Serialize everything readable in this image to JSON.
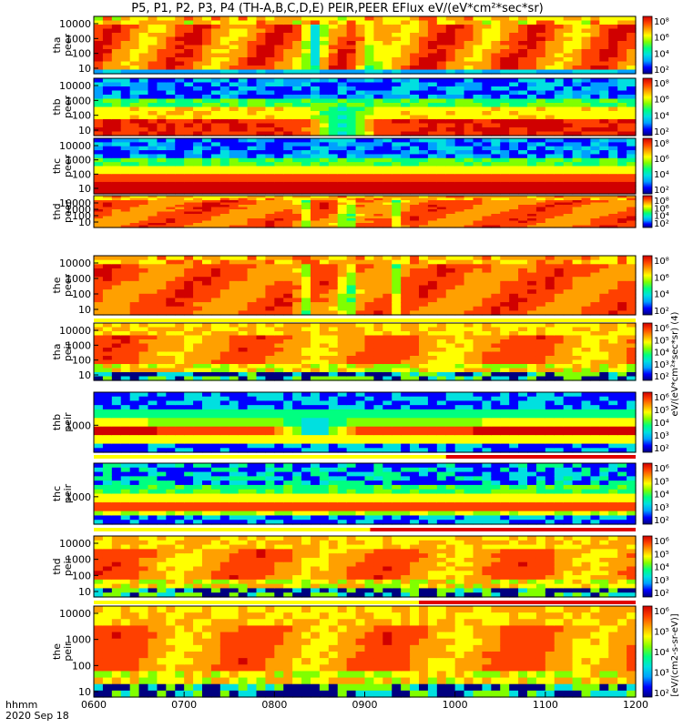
{
  "chart_data": {
    "type": "heatmap",
    "title": "P5, P1, P2, P3, P4 (TH-A,B,C,D,E) PEIR,PEER EFlux eV/(eV*cm²*sec*sr)",
    "colorbar_label": "[eV/(cm2-s-sr-eV)]",
    "colorbar_label_peer": "eV/(eV*cm²*sec*sr) (4)",
    "colorbar_ticks_peer": [
      "10⁸",
      "10⁶",
      "10⁴",
      "10²"
    ],
    "colorbar_ticks_peir": [
      "10⁶",
      "10⁵",
      "10⁴",
      "10³",
      "10²"
    ],
    "x_axis": {
      "label_line1": "hhmm",
      "label_line2": "2020 Sep 18",
      "ticks": [
        "0600",
        "0700",
        "0800",
        "0900",
        "1000",
        "1100",
        "1200"
      ]
    },
    "panels": [
      {
        "probe": "tha",
        "product": "peer",
        "ylabel1": "tha",
        "ylabel2": "peer",
        "yticks": [
          "10000",
          "1000",
          "100",
          "10"
        ]
      },
      {
        "probe": "thb",
        "product": "peer",
        "ylabel1": "thb",
        "ylabel2": "peer",
        "yticks": [
          "10000",
          "1000",
          "100",
          "10"
        ]
      },
      {
        "probe": "thc",
        "product": "peer",
        "ylabel1": "thc",
        "ylabel2": "peer",
        "yticks": [
          "10000",
          "1000",
          "100",
          "10"
        ]
      },
      {
        "probe": "thd",
        "product": "peer",
        "ylabel1": "thd",
        "ylabel2": "peer",
        "yticks": [
          "10000",
          "1000",
          "100",
          "10"
        ]
      },
      {
        "probe": "the",
        "product": "peer",
        "ylabel1": "the",
        "ylabel2": "peer",
        "yticks": [
          "10000",
          "1000",
          "100",
          "10"
        ]
      },
      {
        "probe": "tha",
        "product": "peir",
        "ylabel1": "tha",
        "ylabel2": "peir",
        "yticks": [
          "10000",
          "1000",
          "100",
          "10"
        ]
      },
      {
        "probe": "thb",
        "product": "peir",
        "ylabel1": "thb",
        "ylabel2": "peir",
        "yticks": [
          "1000"
        ]
      },
      {
        "probe": "thc",
        "product": "peir",
        "ylabel1": "thc",
        "ylabel2": "peir",
        "yticks": [
          "1000"
        ]
      },
      {
        "probe": "thd",
        "product": "peir",
        "ylabel1": "thd",
        "ylabel2": "peir",
        "yticks": [
          "10000",
          "1000",
          "100",
          "10"
        ]
      },
      {
        "probe": "the",
        "product": "peir",
        "ylabel1": "the",
        "ylabel2": "peir",
        "yticks": [
          "10000",
          "1000",
          "100",
          "10"
        ]
      }
    ],
    "colorscale": [
      "#000080",
      "#0000ff",
      "#00a0ff",
      "#00e0e0",
      "#00ff80",
      "#80ff00",
      "#ffff00",
      "#ffa000",
      "#ff4000",
      "#d00000"
    ]
  }
}
